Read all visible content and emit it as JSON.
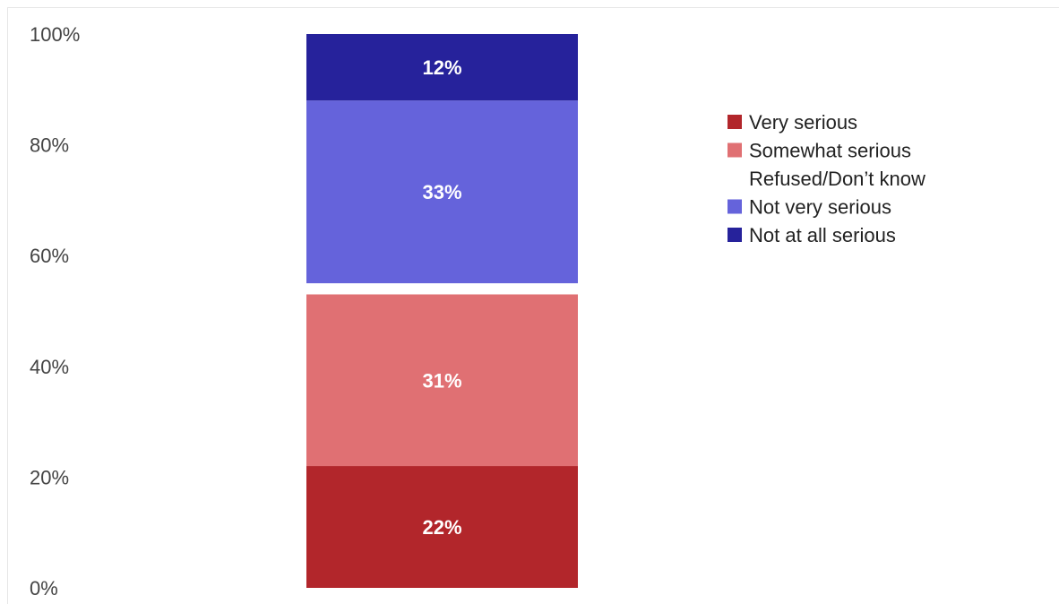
{
  "chart_data": {
    "type": "bar",
    "stacked": true,
    "categories": [
      ""
    ],
    "ylim": [
      0,
      100
    ],
    "yticks": [
      "0%",
      "20%",
      "40%",
      "60%",
      "80%",
      "100%"
    ],
    "ytick_values": [
      0,
      20,
      40,
      60,
      80,
      100
    ],
    "legend_position": "right",
    "series": [
      {
        "name": "Very serious",
        "values": [
          22
        ],
        "label": "22%",
        "color": "#b2262b"
      },
      {
        "name": "Somewhat serious",
        "values": [
          31
        ],
        "label": "31%",
        "color": "#e07073"
      },
      {
        "name": "Refused/Don’t know",
        "values": [
          2
        ],
        "label": "",
        "color": "#ffffff"
      },
      {
        "name": "Not very serious",
        "values": [
          33
        ],
        "label": "33%",
        "color": "#6563db"
      },
      {
        "name": "Not at all serious",
        "values": [
          12
        ],
        "label": "12%",
        "color": "#26229b"
      }
    ]
  }
}
